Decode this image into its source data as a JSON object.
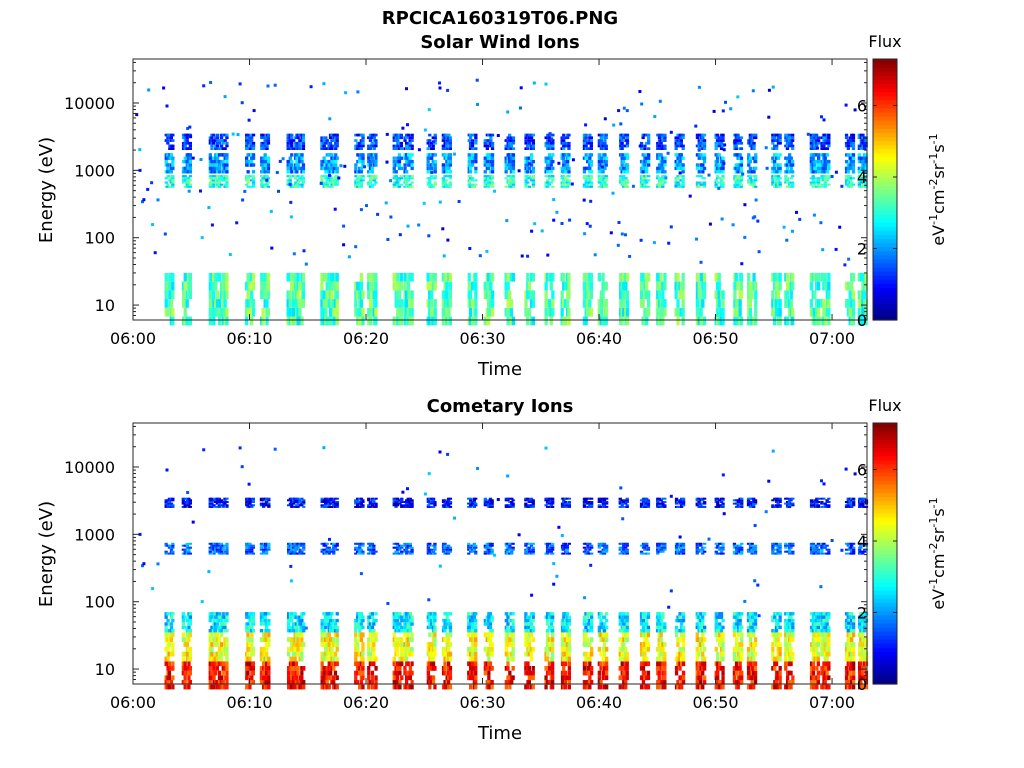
{
  "figure_title": "RPCICA160319T06.PNG",
  "chart_data": [
    {
      "type": "heatmap",
      "title": "Solar Wind Ions",
      "xlabel": "Time",
      "ylabel": "Energy (eV)",
      "x_ticks": [
        "06:00",
        "06:10",
        "06:20",
        "06:30",
        "06:40",
        "06:50",
        "07:00"
      ],
      "y_ticks": [
        "10",
        "100",
        "1000",
        "10000"
      ],
      "y_scale": "log",
      "ylim": [
        6,
        45000
      ],
      "colorbar": {
        "label": "Flux",
        "units": "eV-1cm-2sr-1s-1",
        "ticks": [
          "0",
          "2",
          "4",
          "6"
        ],
        "range": [
          0,
          7.3
        ],
        "colormap": "jet"
      },
      "scan_times_min": [
        3.0,
        4.5,
        6.8,
        7.6,
        9.9,
        11.2,
        13.5,
        14.2,
        16.4,
        17.1,
        19.3,
        20.4,
        22.6,
        23.5,
        25.5,
        26.8,
        29.0,
        30.4,
        32.2,
        33.9,
        35.6,
        37.0,
        38.9,
        40.2,
        42.0,
        43.8,
        45.2,
        46.8,
        48.6,
        50.2,
        51.8,
        53.0,
        55.1,
        56.2,
        58.4,
        59.3,
        61.4,
        62.5
      ],
      "bands": [
        {
          "emin": 550,
          "emax": 850,
          "level": 3.0
        },
        {
          "emin": 900,
          "emax": 1800,
          "level": 2.0
        },
        {
          "emin": 2000,
          "emax": 3500,
          "level": 1.4
        },
        {
          "emin": 5,
          "emax": 30,
          "level": 3.3
        }
      ]
    },
    {
      "type": "heatmap",
      "title": "Cometary Ions",
      "xlabel": "Time",
      "ylabel": "Energy (eV)",
      "x_ticks": [
        "06:00",
        "06:10",
        "06:20",
        "06:30",
        "06:40",
        "06:50",
        "07:00"
      ],
      "y_ticks": [
        "10",
        "100",
        "1000",
        "10000"
      ],
      "y_scale": "log",
      "ylim": [
        6,
        45000
      ],
      "colorbar": {
        "label": "Flux",
        "units": "eV-1cm-2sr-1s-1",
        "ticks": [
          "0",
          "2",
          "4",
          "6"
        ],
        "range": [
          0,
          7.3
        ],
        "colormap": "jet"
      },
      "scan_times_min": [
        3.0,
        4.5,
        6.8,
        7.6,
        9.9,
        11.2,
        13.5,
        14.2,
        16.4,
        17.1,
        19.3,
        20.4,
        22.6,
        23.5,
        25.5,
        26.8,
        29.0,
        30.4,
        32.2,
        33.9,
        35.6,
        37.0,
        38.9,
        40.2,
        42.0,
        43.8,
        45.2,
        46.8,
        48.6,
        50.2,
        51.8,
        53.0,
        55.1,
        56.2,
        58.4,
        59.3,
        61.4,
        62.5
      ],
      "bands": [
        {
          "emin": 5,
          "emax": 13,
          "level": 6.3
        },
        {
          "emin": 13,
          "emax": 35,
          "level": 4.5
        },
        {
          "emin": 35,
          "emax": 70,
          "level": 2.6
        },
        {
          "emin": 500,
          "emax": 750,
          "level": 1.6
        },
        {
          "emin": 2500,
          "emax": 3500,
          "level": 1.0
        }
      ]
    }
  ]
}
